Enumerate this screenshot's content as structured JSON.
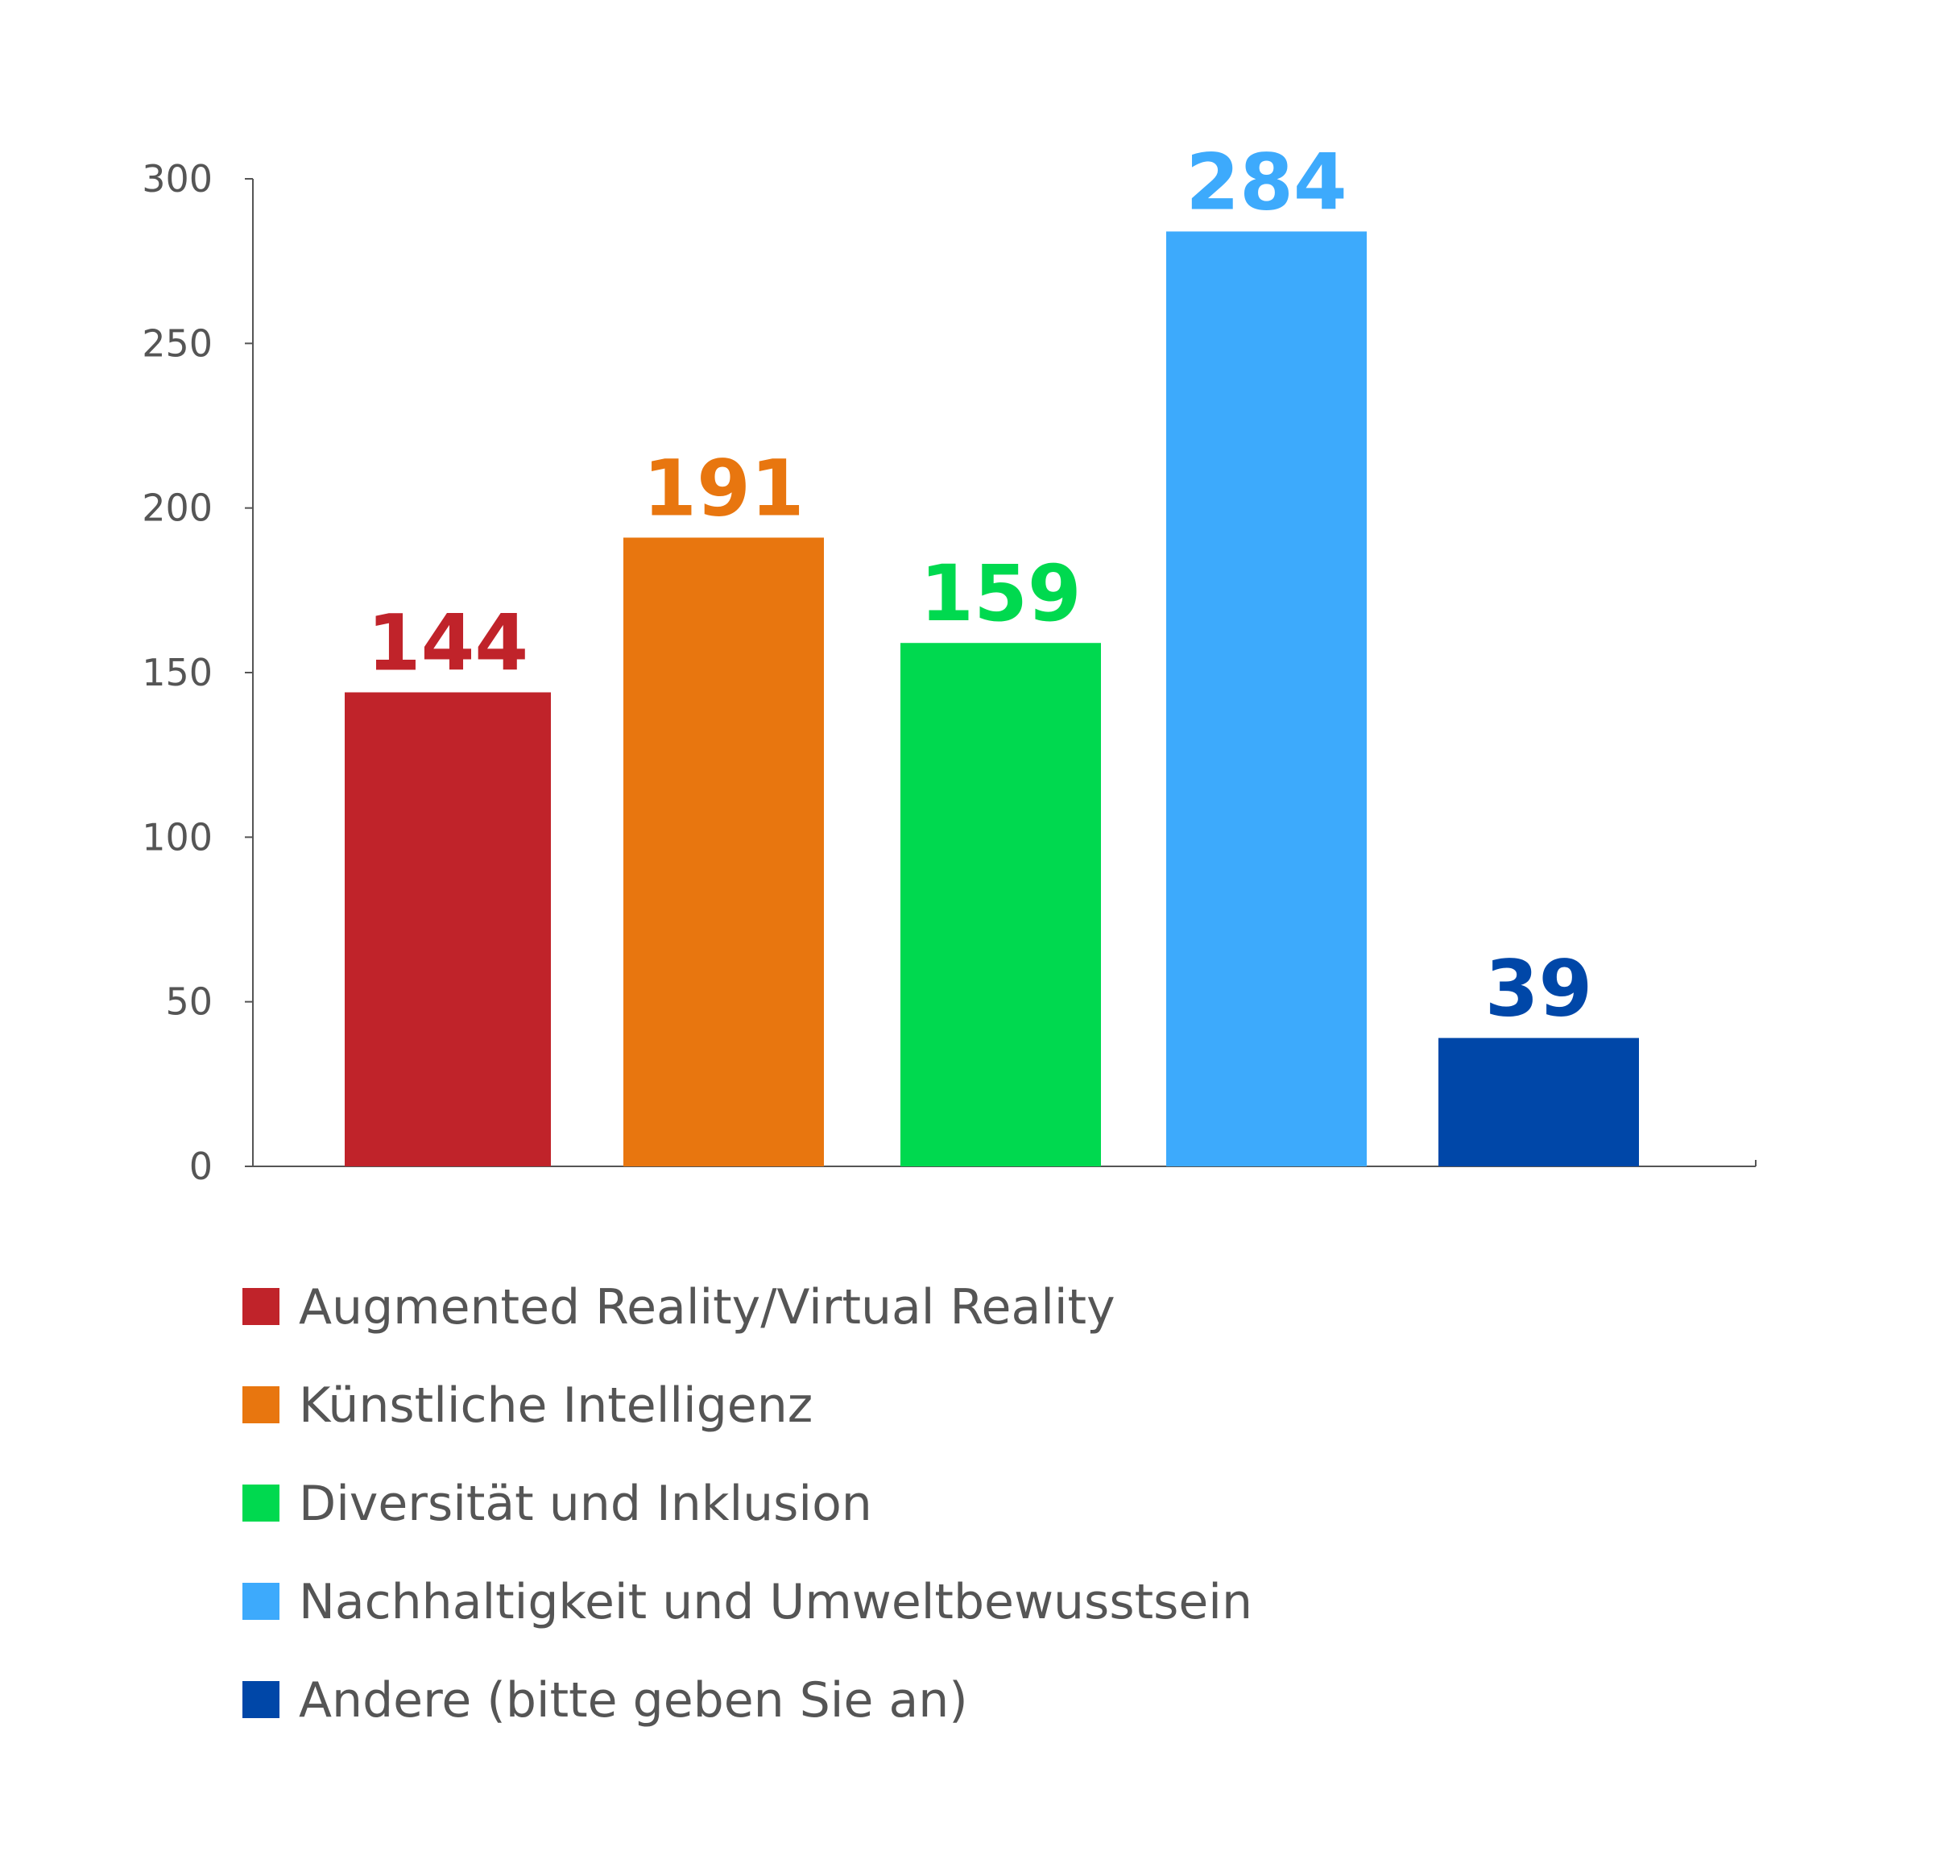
{
  "chart_data": {
    "type": "bar",
    "categories": [
      "Augmented Reality/Virtual Reality",
      "Künstliche Intelligenz",
      "Diversität und Inklusion",
      "Nachhaltigkeit und Umweltbewusstsein",
      "Andere (bitte geben Sie an)"
    ],
    "values": [
      144,
      191,
      159,
      284,
      39
    ],
    "colors": [
      "#c0232a",
      "#e8760f",
      "#00d94f",
      "#3daafc",
      "#0047a8"
    ],
    "yticks": [
      0,
      50,
      100,
      150,
      200,
      250,
      300
    ],
    "ylim": [
      0,
      300
    ],
    "title": "",
    "xlabel": "",
    "ylabel": "",
    "grid": false,
    "legend": {
      "position": "bottom"
    }
  }
}
